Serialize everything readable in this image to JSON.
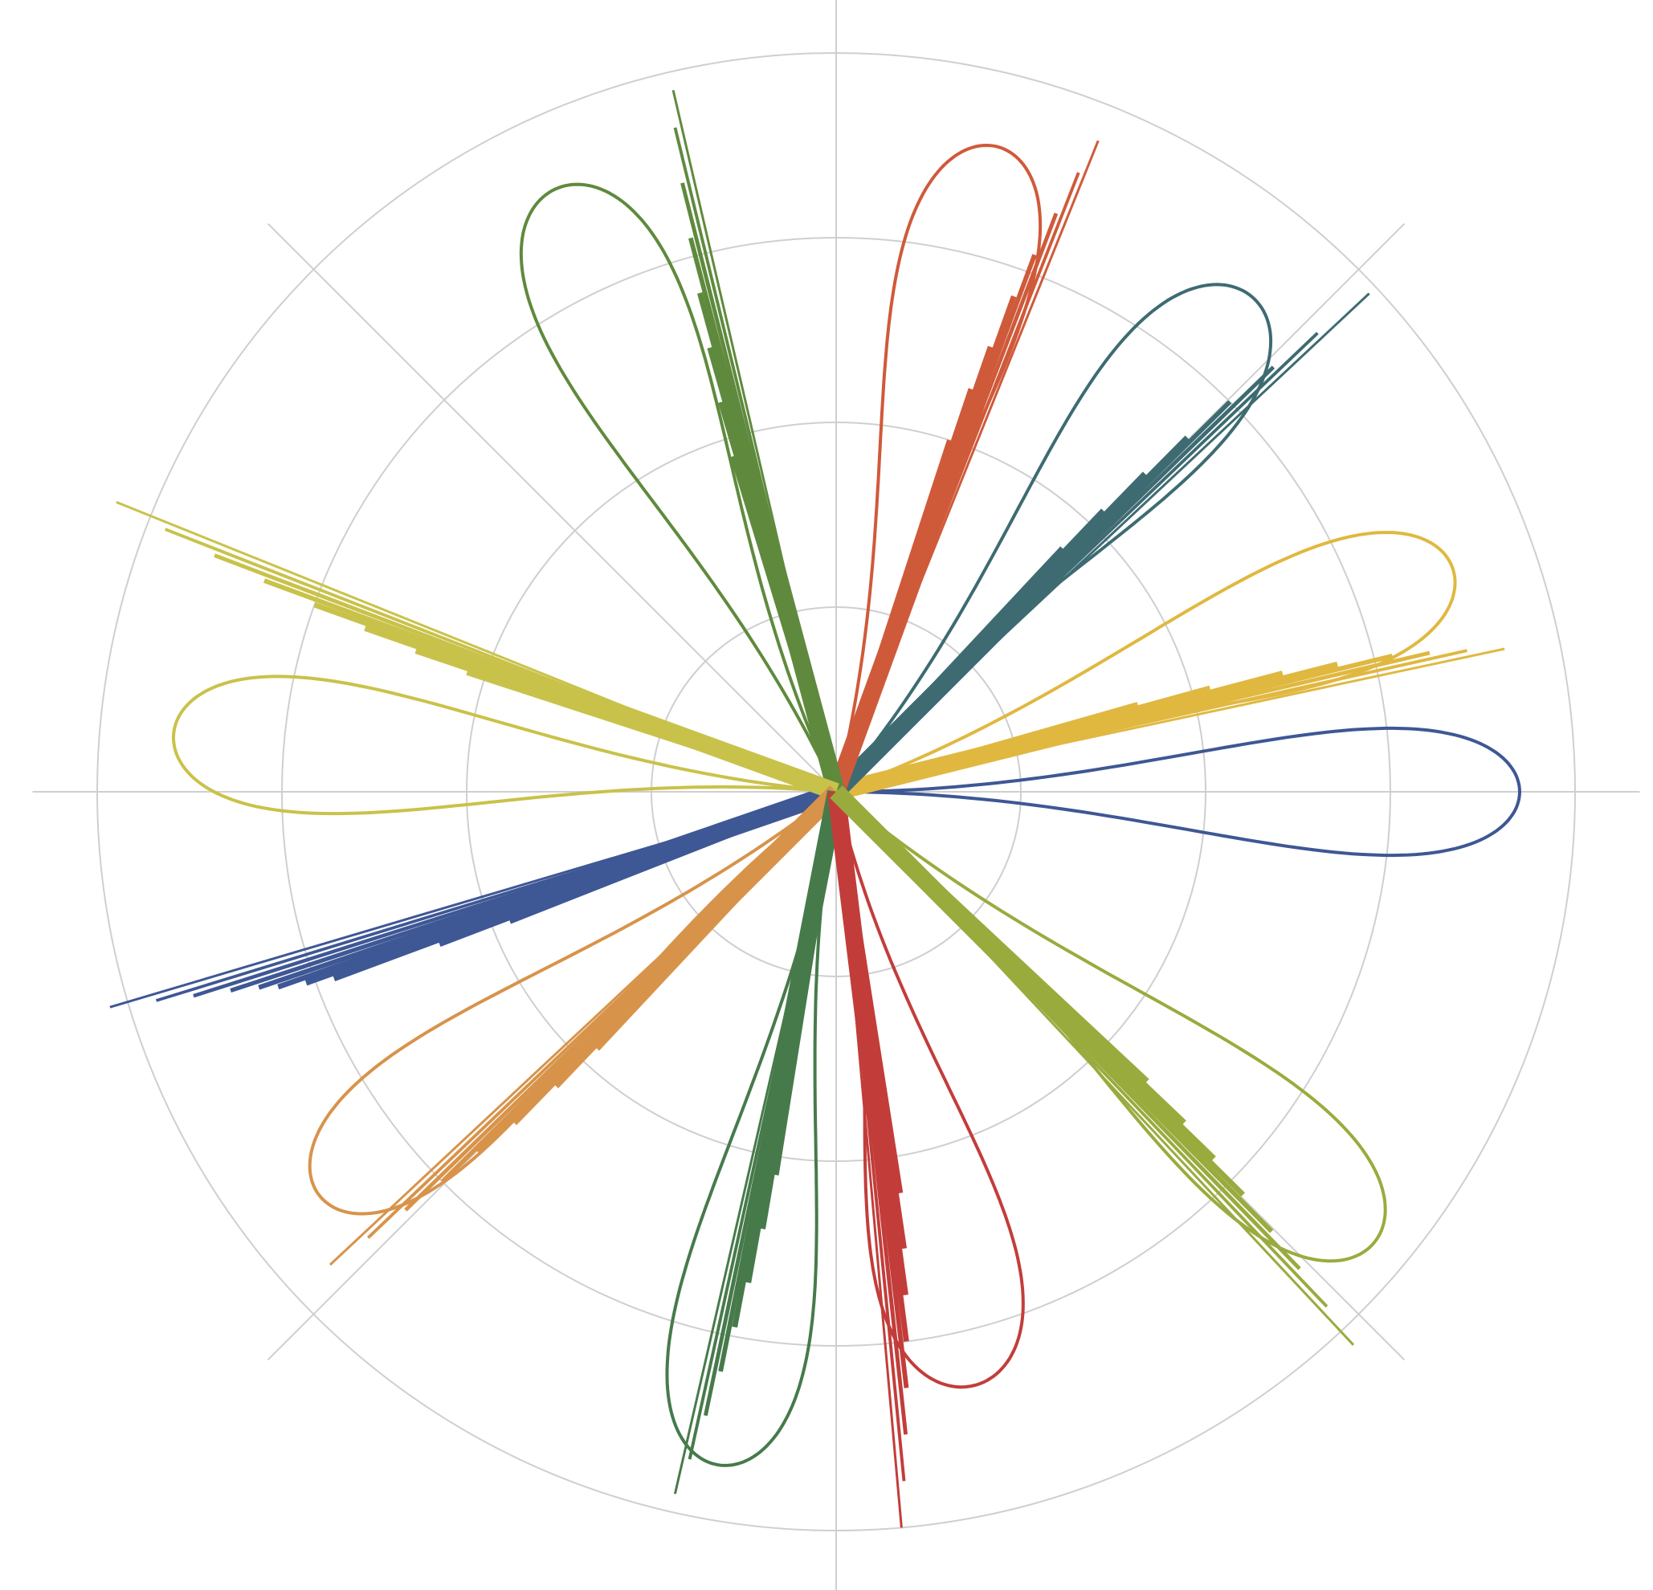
{
  "chart_data": {
    "type": "polar-line",
    "title": "",
    "grid": true,
    "radial_range": [
      0,
      4
    ],
    "radial_grid_values": [
      1,
      2,
      3,
      4
    ],
    "angular_gridlines_deg": [
      0,
      45,
      90,
      135,
      180,
      225,
      270,
      315
    ],
    "series": [
      {
        "color": "#3e5795",
        "petal": {
          "angle_deg": 0,
          "max_r": 3.7,
          "half_width": 0.055
        },
        "rays": {
          "angle_deg": 199,
          "lengths": [
            4.1,
            3.85,
            3.65,
            3.45,
            3.3,
            3.2,
            3.05,
            2.9,
            2.3,
            1.9
          ],
          "width_start": 3,
          "width_end": 22
        }
      },
      {
        "color": "#e0b840",
        "petal": {
          "angle_deg": 20,
          "max_r": 3.55,
          "half_width": 0.06
        },
        "rays": {
          "angle_deg": 14,
          "lengths": [
            3.7,
            3.5,
            3.3,
            3.1,
            2.8,
            2.5,
            2.1,
            1.7
          ],
          "width_start": 3,
          "width_end": 22
        }
      },
      {
        "color": "#3e6b72",
        "petal": {
          "angle_deg": 50,
          "max_r": 3.5,
          "half_width": 0.065
        },
        "rays": {
          "angle_deg": 45,
          "lengths": [
            3.95,
            3.6,
            3.3,
            3.0,
            2.7,
            2.4,
            2.1,
            1.8
          ],
          "width_start": 3,
          "width_end": 22
        }
      },
      {
        "color": "#cf5a3a",
        "petal": {
          "angle_deg": 76,
          "max_r": 3.6,
          "half_width": 0.06
        },
        "rays": {
          "angle_deg": 70,
          "lengths": [
            3.8,
            3.6,
            3.35,
            3.1,
            2.85,
            2.55,
            2.3,
            2.0
          ],
          "width_start": 3,
          "width_end": 22
        }
      },
      {
        "color": "#5f8a3d",
        "petal": {
          "angle_deg": 115,
          "max_r": 3.6,
          "half_width": 0.065
        },
        "rays": {
          "angle_deg": 105,
          "lengths": [
            3.9,
            3.7,
            3.4,
            3.1,
            2.8,
            2.5,
            2.2,
            1.9
          ],
          "width_start": 3,
          "width_end": 22
        }
      },
      {
        "color": "#c9c24a",
        "petal": {
          "angle_deg": 175,
          "max_r": 3.6,
          "half_width": 0.06
        },
        "rays": {
          "angle_deg": 160,
          "lengths": [
            4.2,
            3.9,
            3.6,
            3.3,
            3.0,
            2.7,
            2.4,
            2.1
          ],
          "width_start": 3,
          "width_end": 22
        }
      },
      {
        "color": "#d8934a",
        "petal": {
          "angle_deg": 218,
          "max_r": 3.55,
          "half_width": 0.06
        },
        "rays": {
          "angle_deg": 225,
          "lengths": [
            3.75,
            3.5,
            3.25,
            3.0,
            2.75,
            2.5,
            2.2,
            1.9
          ],
          "width_start": 3,
          "width_end": 22
        }
      },
      {
        "color": "#477a4b",
        "petal": {
          "angle_deg": 260,
          "max_r": 3.7,
          "half_width": 0.06
        },
        "rays": {
          "angle_deg": 259,
          "lengths": [
            3.9,
            3.7,
            3.45,
            3.2,
            2.95,
            2.7,
            2.4,
            2.1
          ],
          "width_start": 3,
          "width_end": 22
        }
      },
      {
        "color": "#c23d3a",
        "petal": {
          "angle_deg": 283,
          "max_r": 3.3,
          "half_width": 0.07
        },
        "rays": {
          "angle_deg": 277,
          "lengths": [
            4.0,
            3.75,
            3.5,
            3.25,
            3.0,
            2.75,
            2.5,
            2.2
          ],
          "width_start": 3,
          "width_end": 22
        }
      },
      {
        "color": "#9aab3e",
        "petal": {
          "angle_deg": 320,
          "max_r": 3.8,
          "half_width": 0.06
        },
        "rays": {
          "angle_deg": 315,
          "lengths": [
            4.1,
            3.85,
            3.6,
            3.35,
            3.1,
            2.85,
            2.6,
            2.3
          ],
          "width_start": 3,
          "width_end": 22
        }
      }
    ]
  }
}
